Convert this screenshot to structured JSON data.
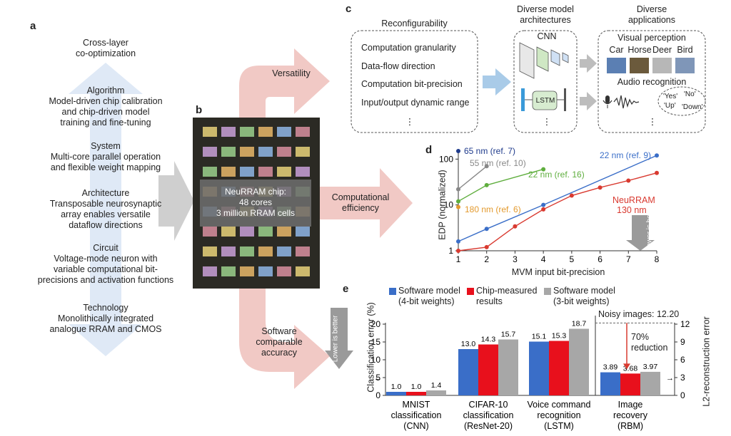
{
  "panels": {
    "a": "a",
    "b": "b",
    "c": "c",
    "d": "d",
    "e": "e"
  },
  "panel_a": {
    "title": [
      "Cross-layer",
      "co-optimization"
    ],
    "layers": [
      {
        "name": "Algorithm",
        "desc": [
          "Model-driven chip calibration",
          "and chip-driven model",
          "training and fine-tuning"
        ]
      },
      {
        "name": "System",
        "desc": [
          "Multi-core parallel operation",
          "and flexible weight mapping"
        ]
      },
      {
        "name": "Architecture",
        "desc": [
          "Transposable neurosynaptic",
          "array enables versatile",
          "dataflow directions"
        ]
      },
      {
        "name": "Circuit",
        "desc": [
          "Voltage-mode neuron with",
          "variable computational bit-",
          "precisions and activation functions"
        ]
      },
      {
        "name": "Technology",
        "desc": [
          "Monolithically integrated",
          "analogue RRAM and CMOS"
        ]
      }
    ]
  },
  "panel_b": {
    "chip_lines": [
      "NeuRRAM chip:",
      "48 cores",
      "3 million RRAM cells"
    ],
    "arrows": [
      "Versatility",
      "Computational",
      "efficiency",
      "Software",
      "comparable",
      "accuracy"
    ]
  },
  "panel_c": {
    "reconfig_title": "Reconfigurability",
    "reconfig_items": [
      "Computation granularity",
      "Data-flow direction",
      "Computation bit-precision",
      "Input/output dynamic range"
    ],
    "ellipsis": "⋮",
    "arch_title": [
      "Diverse model",
      "architectures"
    ],
    "cnn_label": "CNN",
    "lstm_label": "LSTM",
    "apps_title": [
      "Diverse",
      "applications"
    ],
    "visual_title": "Visual perception",
    "visual_classes": [
      "Car",
      "Horse",
      "Deer",
      "Bird"
    ],
    "audio_title": "Audio recognition",
    "audio_words": [
      "'Yes'",
      "'No'",
      "'Up'",
      "'Down'"
    ]
  },
  "chart_data": [
    {
      "type": "line",
      "title": "",
      "xlabel": "MVM input bit-precision",
      "ylabel": "EDP (normalized)",
      "xlim": [
        1,
        8
      ],
      "ylim": [
        1,
        150
      ],
      "yscale": "log",
      "xticks": [
        "1",
        "2",
        "3",
        "4",
        "5",
        "6",
        "7",
        "8"
      ],
      "yticks": [
        "1",
        "10",
        "100"
      ],
      "annotation": "Lower is better",
      "series": [
        {
          "name": "65 nm (ref. 7)",
          "color": "#1f3b8c",
          "x": [
            1
          ],
          "y": [
            150
          ]
        },
        {
          "name": "55 nm (ref. 10)",
          "color": "#888888",
          "x": [
            1,
            2
          ],
          "y": [
            22,
            70
          ]
        },
        {
          "name": "22 nm (ref. 16)",
          "color": "#5fae3e",
          "x": [
            1,
            2,
            4
          ],
          "y": [
            12,
            27,
            60
          ]
        },
        {
          "name": "180 nm (ref. 6)",
          "color": "#e39a2e",
          "x": [
            1
          ],
          "y": [
            9
          ]
        },
        {
          "name": "22 nm (ref. 9)",
          "color": "#3a6ec8",
          "x": [
            1,
            2,
            4,
            8
          ],
          "y": [
            1.6,
            3,
            10,
            120
          ]
        },
        {
          "name": "NeuRRAM 130 nm",
          "color": "#d93a30",
          "x": [
            1,
            2,
            3,
            4,
            5,
            6,
            7,
            8
          ],
          "y": [
            1,
            1.2,
            3.4,
            8,
            16,
            24,
            34,
            50
          ]
        }
      ]
    },
    {
      "type": "bar",
      "title": "",
      "ylabel": "Classification error (%)",
      "ylabel_right": "L2-reconstruction error",
      "ylim": [
        0,
        20
      ],
      "ylim_right": [
        0,
        12
      ],
      "yticks": [
        "0",
        "5",
        "10",
        "15",
        "20"
      ],
      "yticks_right": [
        "0",
        "3",
        "6",
        "9",
        "12"
      ],
      "annotation": "Lower is better",
      "noisy_label": "Noisy images: 12.20",
      "reduction_label": [
        "70%",
        "reduction"
      ],
      "categories": [
        [
          "MNIST",
          "classification",
          "(CNN)"
        ],
        [
          "CIFAR-10",
          "classification",
          "(ResNet-20)"
        ],
        [
          "Voice command",
          "recognition",
          "(LSTM)"
        ],
        [
          "Image",
          "recovery",
          "(RBM)"
        ]
      ],
      "series": [
        {
          "name": "Software model (4-bit weights)",
          "legend": [
            "Software model",
            "(4-bit weights)"
          ],
          "color": "#3a6ec8",
          "values": [
            1.0,
            13.0,
            15.1,
            3.89
          ]
        },
        {
          "name": "Chip-measured results",
          "legend": [
            "Chip-measured",
            "results"
          ],
          "color": "#e8101c",
          "values": [
            1.0,
            14.3,
            15.3,
            3.68
          ]
        },
        {
          "name": "Software model (3-bit weights)",
          "legend": [
            "Software model",
            "(3-bit weights)"
          ],
          "color": "#a7a7a7",
          "values": [
            1.4,
            15.7,
            18.7,
            3.97
          ]
        }
      ],
      "value_labels": [
        [
          "1.0",
          "1.0",
          "1.4"
        ],
        [
          "13.0",
          "14.3",
          "15.7"
        ],
        [
          "15.1",
          "15.3",
          "18.7"
        ],
        [
          "3.89",
          "3.68",
          "3.97"
        ]
      ]
    }
  ]
}
